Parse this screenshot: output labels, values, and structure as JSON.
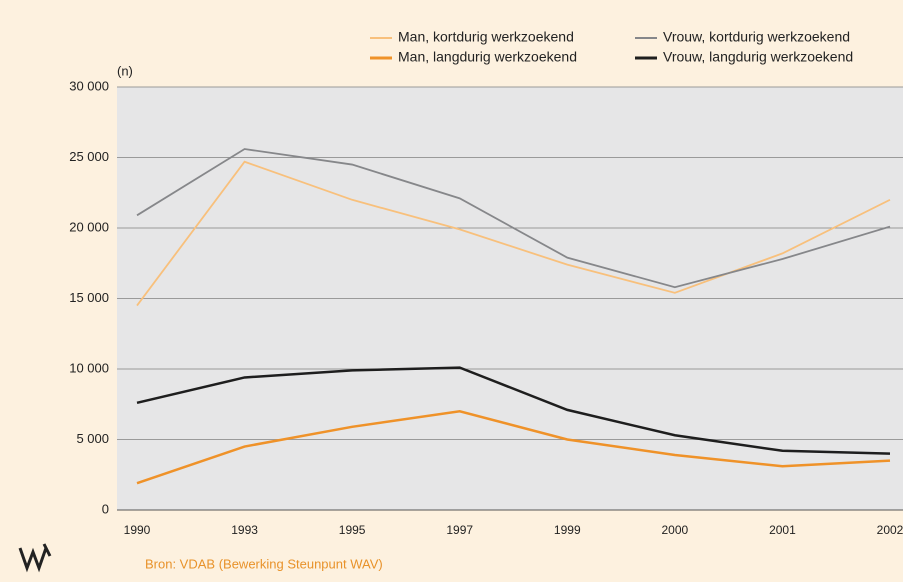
{
  "chart_data": {
    "type": "line",
    "y_label": "(n)",
    "source": "Bron: VDAB (Bewerking Steunpunt WAV)",
    "categories": [
      "1990",
      "1993",
      "1995",
      "1997",
      "1999",
      "2000",
      "2001",
      "2002"
    ],
    "series": [
      {
        "name": "Man, kortdurig werkzoekend",
        "color": "#f8c07c",
        "values": [
          14500,
          24700,
          22000,
          19900,
          17400,
          15400,
          18200,
          22000
        ]
      },
      {
        "name": "Vrouw, kortdurig werkzoekend",
        "color": "#86878a",
        "values": [
          20900,
          25600,
          24500,
          22100,
          17900,
          15800,
          17800,
          20100
        ]
      },
      {
        "name": "Man, langdurig werkzoekend",
        "color": "#ef9229",
        "values": [
          1900,
          4500,
          5900,
          7000,
          5000,
          3900,
          3100,
          3500
        ]
      },
      {
        "name": "Vrouw, langdurig werkzoekend",
        "color": "#1e1e1e",
        "values": [
          7600,
          9400,
          9900,
          10100,
          7100,
          5300,
          4200,
          4000
        ]
      }
    ],
    "ylim": [
      0,
      30000
    ],
    "yticks": [
      0,
      {
        "value": 5000,
        "label": "5 000"
      },
      {
        "value": 10000,
        "label": "10 000"
      },
      {
        "value": 15000,
        "label": "15 000"
      },
      {
        "value": 20000,
        "label": "20 000"
      },
      {
        "value": 25000,
        "label": "25 000"
      },
      {
        "value": 30000,
        "label": "30 000"
      }
    ],
    "grid": true
  }
}
